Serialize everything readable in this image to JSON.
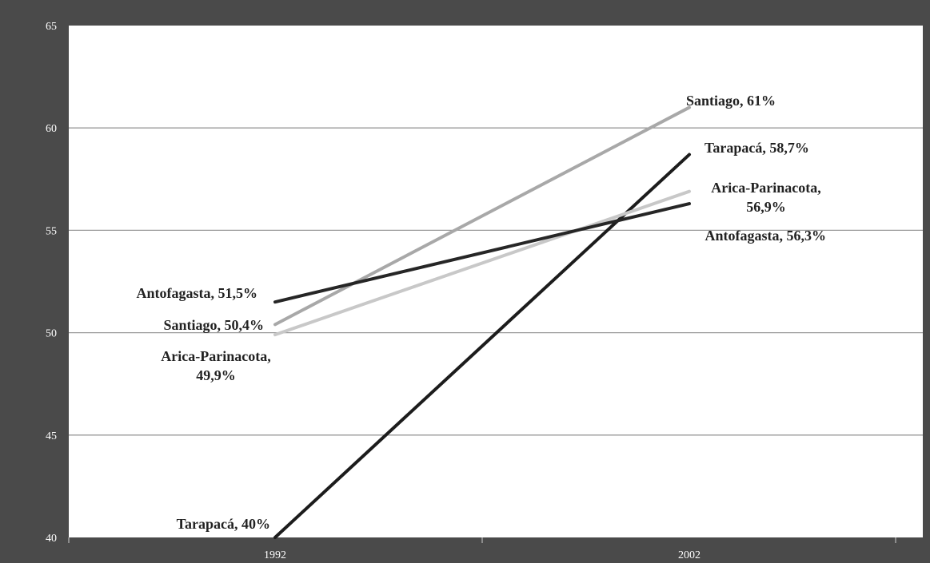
{
  "chart_data": {
    "type": "line",
    "title": "",
    "xlabel": "",
    "ylabel": "",
    "x": [
      "1992",
      "2002"
    ],
    "ylim": [
      40,
      65
    ],
    "yticks": [
      40,
      45,
      50,
      55,
      60,
      65
    ],
    "grid": true,
    "legend": "none",
    "series": [
      {
        "name": "Santiago",
        "values": [
          50.4,
          61
        ],
        "color": "#a8a8a8",
        "labels": [
          "Santiago, 50,4%",
          "Santiago, 61%"
        ]
      },
      {
        "name": "Tarapacá",
        "values": [
          40,
          58.7
        ],
        "color": "#1c1c1c",
        "labels": [
          "Tarapacá, 40%",
          "Tarapacá, 58,7%"
        ]
      },
      {
        "name": "Arica-Parinacota",
        "values": [
          49.9,
          56.9
        ],
        "color": "#c8c8c8",
        "labels": [
          "Arica-Parinacota,|49,9%",
          "Arica-Parinacota,|56,9%"
        ]
      },
      {
        "name": "Antofagasta",
        "values": [
          51.5,
          56.3
        ],
        "color": "#262626",
        "labels": [
          "Antofagasta, 51,5%",
          "Antofagasta, 56,3%"
        ]
      }
    ],
    "colors": {
      "frame": "#4a4a4a",
      "plot_background": "#ffffff",
      "grid": "#9a9a9a",
      "tick_text": "#ffffff",
      "label_text": "#222222"
    }
  }
}
